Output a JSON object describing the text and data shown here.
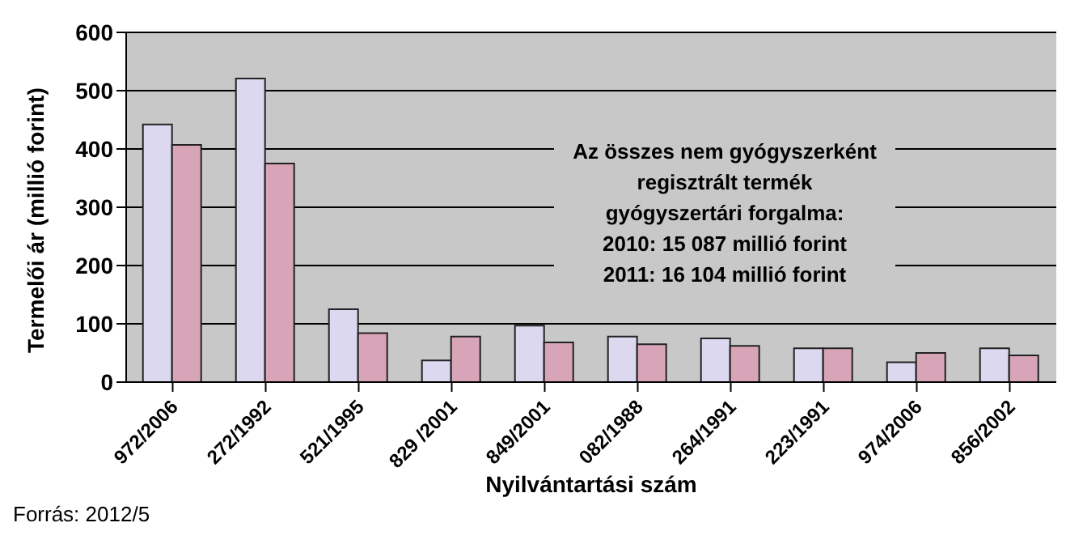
{
  "chart_data": {
    "type": "bar",
    "xlabel": "Nyilvántartási szám",
    "ylabel": "Termelői ár (millió forint)",
    "categories": [
      "972/2006",
      "272/1992",
      "521/1995",
      "829 /2001",
      "849/2001",
      "082/1988",
      "264/1991",
      "223/1991",
      "974/2006",
      "856/2002"
    ],
    "series": [
      {
        "color": "#dcd8f0",
        "values": [
          442,
          521,
          125,
          37,
          97,
          78,
          75,
          58,
          34,
          58
        ]
      },
      {
        "color": "#d8a4b8",
        "values": [
          407,
          375,
          84,
          78,
          68,
          65,
          62,
          58,
          50,
          46
        ]
      }
    ],
    "ylim": [
      0,
      600
    ],
    "yticks": [
      0,
      100,
      200,
      300,
      400,
      500,
      600
    ],
    "grid": "y",
    "legend": false,
    "annotations": [
      "Az összes nem gyógyszerként regisztrált termék\ngyógyszertári forgalma:\n2010: 15 087 millió forint\n2011: 16 104 millió forint",
      "Forrás: 2012/5"
    ]
  }
}
